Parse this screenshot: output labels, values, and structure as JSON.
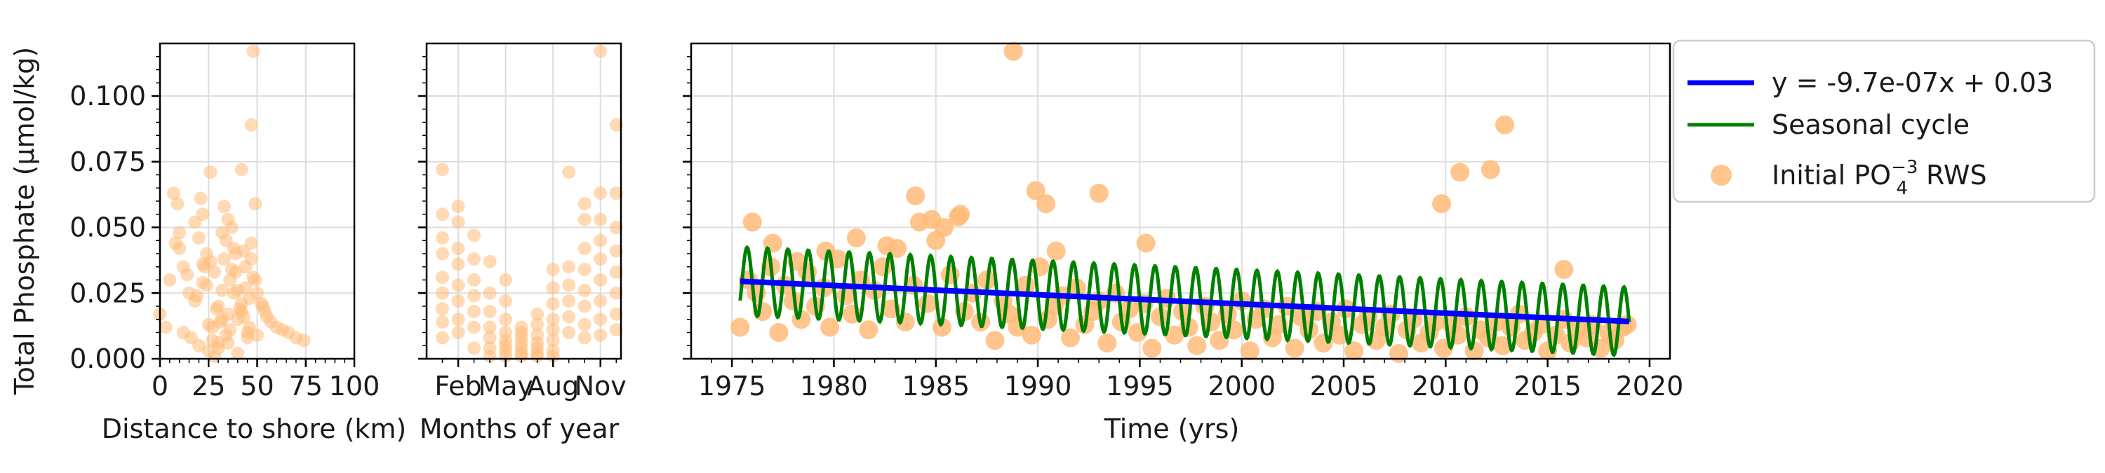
{
  "colors": {
    "points": "#ffbb78",
    "trend": "#0000ff",
    "seasonal": "#008000",
    "grid": "#dddddd",
    "axis": "#000000"
  },
  "chart_data": [
    {
      "id": "distance",
      "type": "scatter",
      "xlabel": "Distance to shore (km)",
      "ylabel": "Total Phosphate (μmol/kg)",
      "xlim": [
        0,
        100
      ],
      "ylim": [
        0,
        0.12
      ],
      "xticks": [
        0,
        25,
        50,
        75,
        100
      ],
      "xtick_labels": [
        "0",
        "25",
        "50",
        "75",
        "100"
      ],
      "yticks": [
        0,
        0.025,
        0.05,
        0.075,
        0.1
      ],
      "ytick_labels": [
        "0.000",
        "0.025",
        "0.050",
        "0.075",
        "0.100"
      ],
      "grid": true,
      "points": {
        "x": [
          0,
          3,
          5,
          7,
          9,
          10,
          12,
          12,
          15,
          16,
          18,
          20,
          22,
          24,
          26,
          28,
          30,
          32,
          34,
          36,
          38,
          40,
          42,
          44,
          46,
          47,
          48,
          49,
          50,
          52,
          54,
          57,
          60,
          63,
          66,
          70,
          74,
          20,
          25,
          30,
          35,
          40,
          45,
          18,
          22,
          27,
          33,
          38,
          43,
          48,
          28,
          31,
          36,
          41,
          46,
          24,
          29,
          34,
          39,
          44,
          21,
          26,
          32,
          37,
          42,
          47,
          23,
          33,
          35,
          39,
          10,
          8,
          43,
          47,
          49,
          14,
          19,
          53,
          55,
          25,
          30,
          35,
          40,
          45,
          50,
          22,
          27,
          32,
          37,
          42
        ],
        "y": [
          0.017,
          0.012,
          0.03,
          0.063,
          0.059,
          0.042,
          0.035,
          0.01,
          0.025,
          0.008,
          0.052,
          0.046,
          0.055,
          0.04,
          0.037,
          0.033,
          0.02,
          0.015,
          0.045,
          0.03,
          0.042,
          0.026,
          0.018,
          0.035,
          0.012,
          0.089,
          0.117,
          0.059,
          0.025,
          0.021,
          0.018,
          0.014,
          0.012,
          0.011,
          0.01,
          0.008,
          0.007,
          0.005,
          0.003,
          0.004,
          0.006,
          0.002,
          0.008,
          0.022,
          0.029,
          0.012,
          0.038,
          0.025,
          0.016,
          0.031,
          0.001,
          0.014,
          0.011,
          0.019,
          0.023,
          0.028,
          0.019,
          0.009,
          0.033,
          0.027,
          0.061,
          0.071,
          0.048,
          0.05,
          0.072,
          0.044,
          0.035,
          0.058,
          0.053,
          0.04,
          0.048,
          0.044,
          0.041,
          0.038,
          0.03,
          0.032,
          0.024,
          0.02,
          0.016,
          0.013,
          0.006,
          0.017,
          0.015,
          0.01,
          0.009,
          0.036,
          0.007,
          0.026,
          0.034,
          0.021
        ]
      }
    },
    {
      "id": "month",
      "type": "scatter",
      "xlabel": "Months of year",
      "xlim": [
        0,
        12.3
      ],
      "ylim": [
        0,
        0.12
      ],
      "xticks": [
        2,
        5,
        8,
        11
      ],
      "xtick_labels": [
        "Feb",
        "May",
        "Aug",
        "Nov"
      ],
      "grid": true,
      "points": {
        "x": [
          1,
          1,
          1,
          1,
          1,
          1,
          1,
          1,
          1,
          2,
          2,
          2,
          2,
          2,
          2,
          2,
          2,
          3,
          3,
          3,
          3,
          3,
          3,
          3,
          4,
          4,
          4,
          4,
          4,
          4,
          4,
          5,
          5,
          5,
          5,
          5,
          5,
          5,
          5,
          6,
          6,
          6,
          6,
          6,
          6,
          6,
          7,
          7,
          7,
          7,
          7,
          7,
          7,
          8,
          8,
          8,
          8,
          8,
          8,
          8,
          8,
          9,
          9,
          9,
          9,
          9,
          9,
          10,
          10,
          10,
          10,
          10,
          10,
          10,
          10,
          11,
          11,
          11,
          11,
          11,
          11,
          11,
          11,
          11,
          12,
          12,
          12,
          12,
          12,
          12,
          12,
          12
        ],
        "y": [
          0.072,
          0.055,
          0.046,
          0.04,
          0.031,
          0.025,
          0.019,
          0.014,
          0.008,
          0.058,
          0.052,
          0.042,
          0.036,
          0.028,
          0.022,
          0.015,
          0.01,
          0.047,
          0.038,
          0.03,
          0.024,
          0.018,
          0.012,
          0.004,
          0.037,
          0.025,
          0.018,
          0.012,
          0.008,
          0.004,
          0.001,
          0.03,
          0.022,
          0.015,
          0.01,
          0.007,
          0.005,
          0.003,
          0.001,
          0.012,
          0.01,
          0.008,
          0.006,
          0.004,
          0.002,
          0.001,
          0.017,
          0.013,
          0.009,
          0.006,
          0.004,
          0.002,
          0.001,
          0.034,
          0.027,
          0.021,
          0.015,
          0.011,
          0.007,
          0.003,
          0.001,
          0.071,
          0.035,
          0.028,
          0.022,
          0.016,
          0.01,
          0.059,
          0.053,
          0.042,
          0.034,
          0.026,
          0.02,
          0.013,
          0.008,
          0.117,
          0.063,
          0.053,
          0.045,
          0.038,
          0.03,
          0.022,
          0.015,
          0.009,
          0.089,
          0.063,
          0.05,
          0.041,
          0.033,
          0.025,
          0.017,
          0.011
        ]
      }
    },
    {
      "id": "time",
      "type": "scatter",
      "xlabel": "Time (yrs)",
      "xlim": [
        1973,
        2021
      ],
      "ylim": [
        0,
        0.12
      ],
      "xticks": [
        1975,
        1980,
        1985,
        1990,
        1995,
        2000,
        2005,
        2010,
        2015,
        2020
      ],
      "xtick_labels": [
        "1975",
        "1980",
        "1985",
        "1990",
        "1995",
        "2000",
        "2005",
        "2010",
        "2015",
        "2020"
      ],
      "grid": true,
      "points": {
        "x": [
          1975.4,
          1975.8,
          1976.2,
          1976.5,
          1976.9,
          1977.3,
          1977.6,
          1978.0,
          1978.4,
          1978.7,
          1979.1,
          1979.5,
          1979.8,
          1980.2,
          1980.6,
          1980.9,
          1981.3,
          1981.7,
          1982.0,
          1982.4,
          1982.8,
          1983.1,
          1983.5,
          1983.9,
          1984.2,
          1984.6,
          1985.0,
          1985.3,
          1985.7,
          1986.1,
          1986.4,
          1986.8,
          1987.2,
          1987.5,
          1987.9,
          1988.3,
          1988.6,
          1989.0,
          1989.4,
          1989.7,
          1990.1,
          1990.5,
          1990.8,
          1991.2,
          1991.6,
          1991.9,
          1992.3,
          1992.7,
          1993.0,
          1993.4,
          1993.8,
          1994.1,
          1994.5,
          1994.9,
          1995.2,
          1995.6,
          1996.0,
          1996.3,
          1996.7,
          1997.1,
          1997.4,
          1997.8,
          1998.2,
          1998.5,
          1998.9,
          1999.3,
          1999.6,
          2000.0,
          2000.4,
          2000.7,
          2001.1,
          2001.5,
          2001.8,
          2002.2,
          2002.6,
          2002.9,
          2003.3,
          2003.7,
          2004.0,
          2004.4,
          2004.8,
          2005.1,
          2005.5,
          2005.9,
          2006.2,
          2006.6,
          2007.0,
          2007.3,
          2007.7,
          2008.1,
          2008.4,
          2008.8,
          2009.2,
          2009.5,
          2009.9,
          2010.3,
          2010.6,
          2011.0,
          2011.4,
          2011.7,
          2012.1,
          2012.5,
          2012.8,
          2013.2,
          2013.6,
          2013.9,
          2014.3,
          2014.7,
          2015.0,
          2015.4,
          2015.8,
          2016.1,
          2016.5,
          2016.9,
          2017.2,
          2017.6,
          2018.0,
          2018.3,
          2018.7,
          1976.0,
          1977.0,
          1978.2,
          1979.6,
          1981.1,
          1982.6,
          1984.0,
          1984.8,
          1985.4,
          1986.2,
          1988.8,
          1989.9,
          1990.4,
          1990.9,
          1993.0,
          1995.3,
          2009.8,
          2010.7,
          2012.2,
          2012.9,
          2015.8,
          2018.9
        ],
        "y": [
          0.012,
          0.03,
          0.025,
          0.018,
          0.035,
          0.01,
          0.028,
          0.022,
          0.015,
          0.033,
          0.02,
          0.027,
          0.012,
          0.038,
          0.024,
          0.017,
          0.03,
          0.011,
          0.026,
          0.035,
          0.019,
          0.042,
          0.014,
          0.028,
          0.052,
          0.021,
          0.045,
          0.012,
          0.032,
          0.054,
          0.018,
          0.025,
          0.014,
          0.03,
          0.007,
          0.022,
          0.017,
          0.012,
          0.028,
          0.009,
          0.035,
          0.015,
          0.02,
          0.024,
          0.008,
          0.027,
          0.013,
          0.018,
          0.022,
          0.006,
          0.025,
          0.014,
          0.019,
          0.01,
          0.021,
          0.004,
          0.016,
          0.023,
          0.009,
          0.018,
          0.012,
          0.005,
          0.02,
          0.014,
          0.007,
          0.017,
          0.011,
          0.022,
          0.003,
          0.015,
          0.019,
          0.008,
          0.013,
          0.02,
          0.004,
          0.016,
          0.011,
          0.018,
          0.006,
          0.014,
          0.009,
          0.019,
          0.003,
          0.013,
          0.016,
          0.007,
          0.012,
          0.017,
          0.002,
          0.011,
          0.015,
          0.006,
          0.01,
          0.014,
          0.004,
          0.013,
          0.009,
          0.016,
          0.003,
          0.011,
          0.008,
          0.014,
          0.005,
          0.012,
          0.017,
          0.007,
          0.01,
          0.013,
          0.003,
          0.009,
          0.015,
          0.006,
          0.011,
          0.008,
          0.013,
          0.004,
          0.01,
          0.007,
          0.012,
          0.052,
          0.044,
          0.037,
          0.041,
          0.046,
          0.043,
          0.062,
          0.053,
          0.05,
          0.055,
          0.117,
          0.064,
          0.059,
          0.041,
          0.063,
          0.044,
          0.059,
          0.071,
          0.072,
          0.089,
          0.034,
          0.013
        ]
      },
      "trend": {
        "label": "y = -9.7e-07x + 0.03",
        "x": [
          1975.4,
          2019.0
        ],
        "y": [
          0.0295,
          0.0142
        ]
      },
      "seasonal": {
        "label": "Seasonal cycle",
        "start": 1975.4,
        "end": 2019.0,
        "period": 1.0,
        "amplitude": 0.013
      }
    }
  ],
  "legend": {
    "position": "outside-right",
    "items": [
      {
        "kind": "line",
        "color": "#0000ff",
        "label": "y = -9.7e-07x + 0.03"
      },
      {
        "kind": "line",
        "color": "#008000",
        "label": "Seasonal cycle"
      },
      {
        "kind": "marker",
        "color": "#ffbb78",
        "label_main": "Initial PO",
        "label_sub": "4",
        "label_sup": "−3",
        "label_end": " RWS"
      }
    ]
  }
}
